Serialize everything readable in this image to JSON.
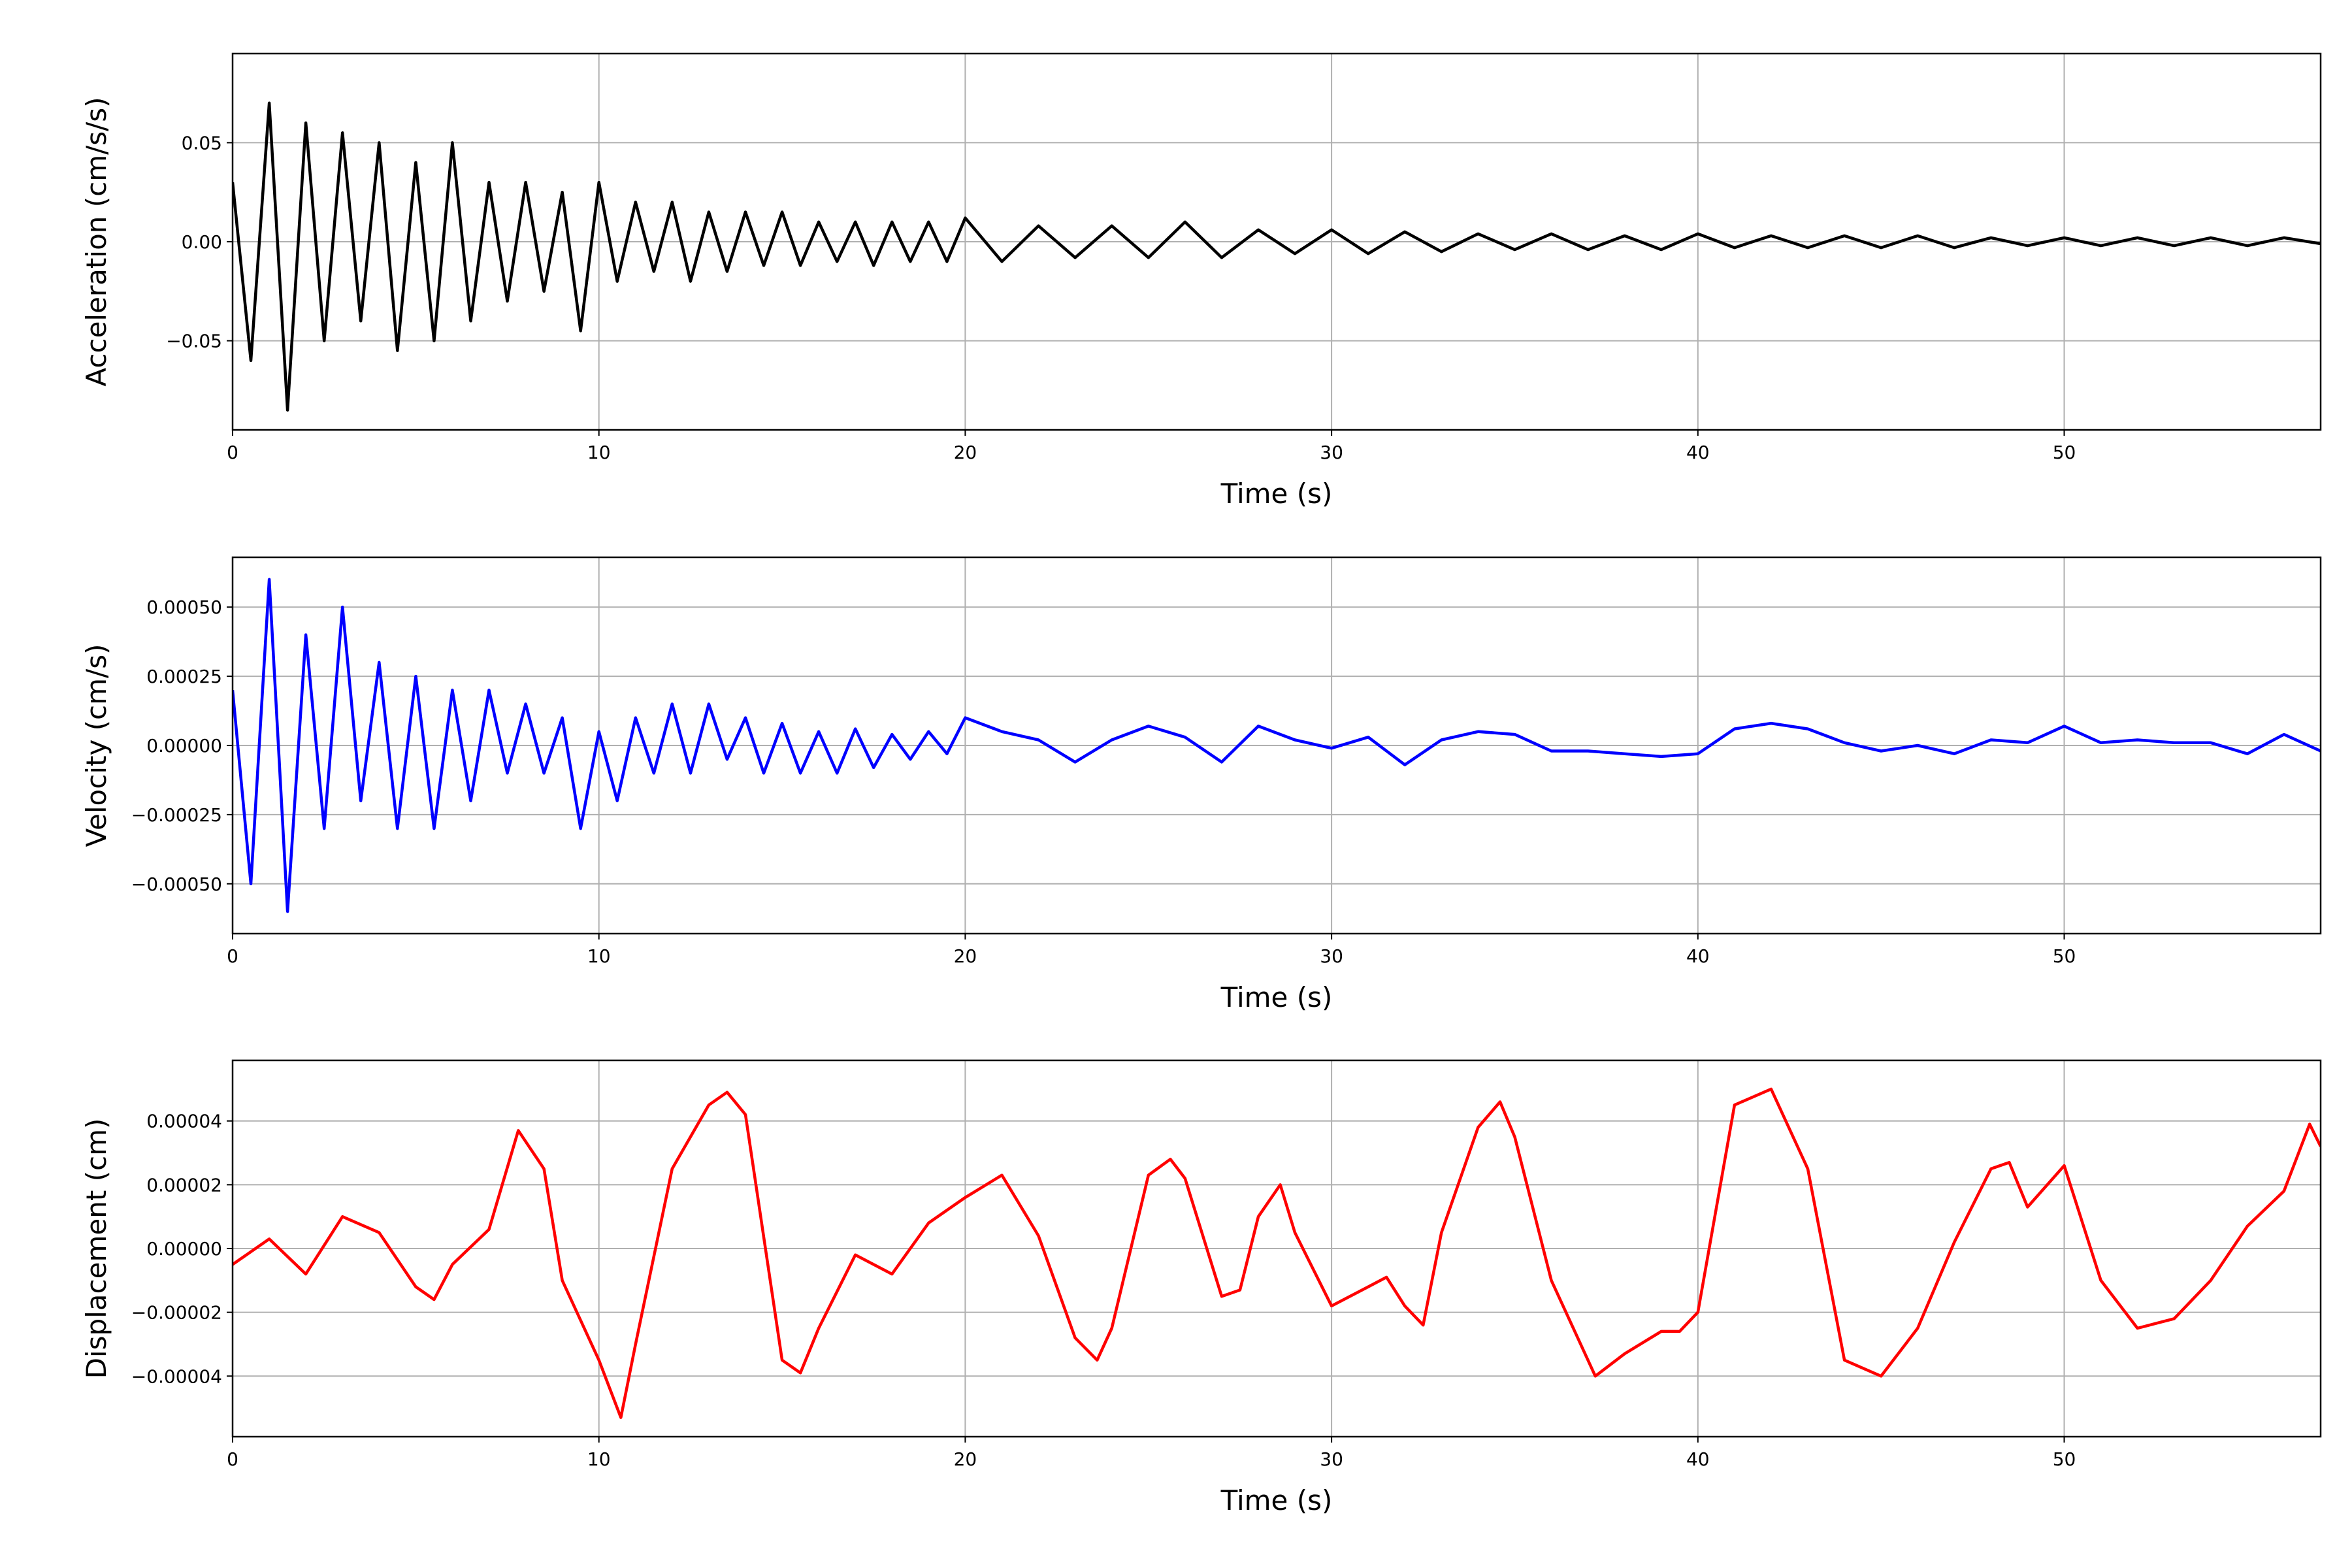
{
  "chart_data": [
    {
      "type": "line",
      "x_label": "Time (s)",
      "y_label": "Acceleration (cm/s/s)",
      "xlim": [
        0,
        57
      ],
      "xticks": [
        0,
        10,
        20,
        30,
        40,
        50
      ],
      "ylim": [
        -0.095,
        0.095
      ],
      "yticks": [
        {
          "value": -0.05,
          "label": "−0.05"
        },
        {
          "value": 0,
          "label": "0.00"
        },
        {
          "value": 0.05,
          "label": "0.05"
        }
      ],
      "grid": true,
      "x": [
        0,
        0.5,
        1,
        1.5,
        2,
        2.5,
        3,
        3.5,
        4,
        4.5,
        5,
        5.5,
        6,
        6.5,
        7,
        7.5,
        8,
        8.5,
        9,
        9.5,
        10,
        10.5,
        11,
        11.5,
        12,
        12.5,
        13,
        13.5,
        14,
        14.5,
        15,
        15.5,
        16,
        16.5,
        17,
        17.5,
        18,
        18.5,
        19,
        19.5,
        20,
        21,
        22,
        23,
        24,
        25,
        26,
        27,
        28,
        29,
        30,
        31,
        32,
        33,
        34,
        35,
        36,
        37,
        38,
        39,
        40,
        41,
        42,
        43,
        44,
        45,
        46,
        47,
        48,
        49,
        50,
        51,
        52,
        53,
        54,
        55,
        56,
        57
      ],
      "series": [
        {
          "color": "#000000",
          "values": [
            0.03,
            -0.06,
            0.07,
            -0.085,
            0.06,
            -0.05,
            0.055,
            -0.04,
            0.05,
            -0.055,
            0.04,
            -0.05,
            0.05,
            -0.04,
            0.03,
            -0.03,
            0.03,
            -0.025,
            0.025,
            -0.045,
            0.03,
            -0.02,
            0.02,
            -0.015,
            0.02,
            -0.02,
            0.015,
            -0.015,
            0.015,
            -0.012,
            0.015,
            -0.012,
            0.01,
            -0.01,
            0.01,
            -0.012,
            0.01,
            -0.01,
            0.01,
            -0.01,
            0.012,
            -0.01,
            0.008,
            -0.008,
            0.008,
            -0.008,
            0.01,
            -0.008,
            0.006,
            -0.006,
            0.006,
            -0.006,
            0.005,
            -0.005,
            0.004,
            -0.004,
            0.004,
            -0.004,
            0.003,
            -0.004,
            0.004,
            -0.003,
            0.003,
            -0.003,
            0.003,
            -0.003,
            0.003,
            -0.003,
            0.002,
            -0.002,
            0.002,
            -0.002,
            0.002,
            -0.002,
            0.002,
            -0.002,
            0.002,
            -0.001
          ]
        }
      ]
    },
    {
      "type": "line",
      "x_label": "Time (s)",
      "y_label": "Velocity (cm/s)",
      "xlim": [
        0,
        57
      ],
      "xticks": [
        0,
        10,
        20,
        30,
        40,
        50
      ],
      "ylim": [
        -0.00068,
        0.00068
      ],
      "yticks": [
        {
          "value": -0.0005,
          "label": "−0.00050"
        },
        {
          "value": -0.00025,
          "label": "−0.00025"
        },
        {
          "value": 0,
          "label": "0.00000"
        },
        {
          "value": 0.00025,
          "label": "0.00025"
        },
        {
          "value": 0.0005,
          "label": "0.00050"
        }
      ],
      "grid": true,
      "x": [
        0,
        0.5,
        1,
        1.5,
        2,
        2.5,
        3,
        3.5,
        4,
        4.5,
        5,
        5.5,
        6,
        6.5,
        7,
        7.5,
        8,
        8.5,
        9,
        9.5,
        10,
        10.5,
        11,
        11.5,
        12,
        12.5,
        13,
        13.5,
        14,
        14.5,
        15,
        15.5,
        16,
        16.5,
        17,
        17.5,
        18,
        18.5,
        19,
        19.5,
        20,
        21,
        22,
        23,
        24,
        25,
        26,
        27,
        28,
        29,
        30,
        31,
        32,
        33,
        34,
        35,
        36,
        37,
        38,
        39,
        40,
        41,
        42,
        43,
        44,
        45,
        46,
        47,
        48,
        49,
        50,
        51,
        52,
        53,
        54,
        55,
        56,
        57
      ],
      "series": [
        {
          "color": "#0000ff",
          "values": [
            0.0002,
            -0.0005,
            0.0006,
            -0.0006,
            0.0004,
            -0.0003,
            0.0005,
            -0.0002,
            0.0003,
            -0.0003,
            0.00025,
            -0.0003,
            0.0002,
            -0.0002,
            0.0002,
            -0.0001,
            0.00015,
            -0.0001,
            0.0001,
            -0.0003,
            5e-05,
            -0.0002,
            0.0001,
            -0.0001,
            0.00015,
            -0.0001,
            0.00015,
            -5e-05,
            0.0001,
            -0.0001,
            8e-05,
            -0.0001,
            5e-05,
            -0.0001,
            6e-05,
            -8e-05,
            4e-05,
            -5e-05,
            5e-05,
            -3e-05,
            0.0001,
            5e-05,
            2e-05,
            -6e-05,
            2e-05,
            7e-05,
            3e-05,
            -6e-05,
            7e-05,
            2e-05,
            -1e-05,
            3e-05,
            -7e-05,
            2e-05,
            5e-05,
            4e-05,
            -2e-05,
            -2e-05,
            -3e-05,
            -4e-05,
            -3e-05,
            6e-05,
            8e-05,
            6e-05,
            1e-05,
            -2e-05,
            0,
            -3e-05,
            2e-05,
            1e-05,
            7e-05,
            1e-05,
            2e-05,
            1e-05,
            1e-05,
            -3e-05,
            4e-05,
            -2e-05
          ]
        }
      ]
    },
    {
      "type": "line",
      "x_label": "Time (s)",
      "y_label": "Displacement (cm)",
      "xlim": [
        0,
        57
      ],
      "xticks": [
        0,
        10,
        20,
        30,
        40,
        50
      ],
      "ylim": [
        -5.9e-05,
        5.9e-05
      ],
      "yticks": [
        {
          "value": -4e-05,
          "label": "−0.00004"
        },
        {
          "value": -2e-05,
          "label": "−0.00002"
        },
        {
          "value": 0,
          "label": "0.00000"
        },
        {
          "value": 2e-05,
          "label": "0.00002"
        },
        {
          "value": 4e-05,
          "label": "0.00004"
        }
      ],
      "grid": true,
      "x": [
        0,
        1,
        2,
        3,
        4,
        5,
        5.5,
        6,
        7,
        7.8,
        8.5,
        9,
        10,
        10.6,
        11,
        12,
        13,
        13.5,
        14,
        15,
        15.5,
        16,
        17,
        18,
        19,
        20,
        21,
        22,
        23,
        23.6,
        24,
        25,
        25.6,
        26,
        27,
        27.5,
        28,
        28.6,
        29,
        30,
        31,
        31.5,
        32,
        32.5,
        33,
        34,
        34.6,
        35,
        36,
        37.2,
        38,
        39,
        39.5,
        40,
        41,
        42,
        43,
        44,
        45,
        46,
        47,
        48,
        48.5,
        49,
        50,
        51,
        52,
        53,
        54,
        55,
        56,
        56.7,
        57
      ],
      "series": [
        {
          "color": "#ff0000",
          "values": [
            -5e-06,
            3e-06,
            -8e-06,
            1e-05,
            5e-06,
            -1.2e-05,
            -1.6e-05,
            -5e-06,
            6e-06,
            3.7e-05,
            2.5e-05,
            -1e-05,
            -3.5e-05,
            -5.3e-05,
            -3e-05,
            2.5e-05,
            4.5e-05,
            4.9e-05,
            4.2e-05,
            -3.5e-05,
            -3.9e-05,
            -2.5e-05,
            -2e-06,
            -8e-06,
            8e-06,
            1.6e-05,
            2.3e-05,
            4e-06,
            -2.8e-05,
            -3.5e-05,
            -2.5e-05,
            2.3e-05,
            2.8e-05,
            2.2e-05,
            -1.5e-05,
            -1.3e-05,
            1e-05,
            2e-05,
            5e-06,
            -1.8e-05,
            -1.2e-05,
            -9e-06,
            -1.8e-05,
            -2.4e-05,
            5e-06,
            3.8e-05,
            4.6e-05,
            3.5e-05,
            -1e-05,
            -4e-05,
            -3.3e-05,
            -2.6e-05,
            -2.6e-05,
            -2e-05,
            4.5e-05,
            5e-05,
            2.5e-05,
            -3.5e-05,
            -4e-05,
            -2.5e-05,
            2e-06,
            2.5e-05,
            2.7e-05,
            1.3e-05,
            2.6e-05,
            -1e-05,
            -2.5e-05,
            -2.2e-05,
            -1e-05,
            7e-06,
            1.8e-05,
            3.9e-05,
            3.2e-05
          ]
        }
      ]
    }
  ]
}
